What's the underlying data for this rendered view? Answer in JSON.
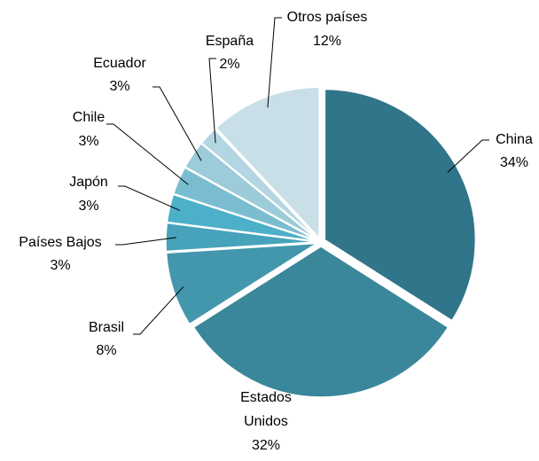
{
  "chart_data": {
    "type": "pie",
    "categories": [
      "China",
      "Estados Unidos",
      "Brasil",
      "Países Bajos",
      "Japón",
      "Chile",
      "Ecuador",
      "España",
      "Otros países"
    ],
    "values": [
      34,
      32,
      8,
      3,
      3,
      3,
      3,
      2,
      12
    ],
    "value_labels": [
      "34%",
      "32%",
      "8%",
      "3%",
      "3%",
      "3%",
      "3%",
      "2%",
      "12%"
    ],
    "colors": [
      "#31758a",
      "#3a879b",
      "#4397ad",
      "#46a3bb",
      "#4bb0c8",
      "#7bbdd0",
      "#9ccbd9",
      "#b4d6e2",
      "#c9dfe8"
    ]
  }
}
